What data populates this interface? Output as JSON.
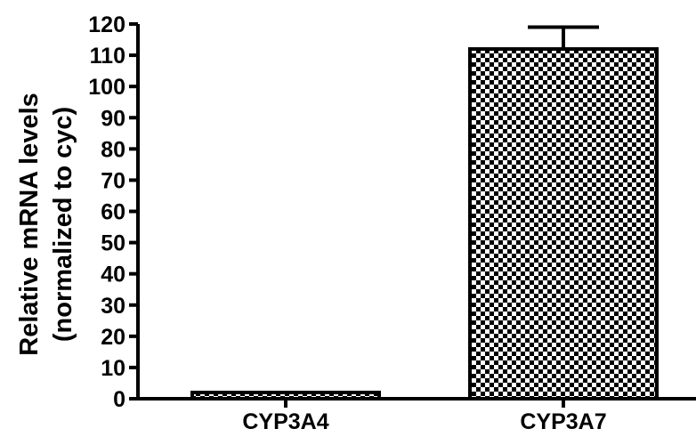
{
  "chart_data": {
    "type": "bar",
    "categories": [
      "CYP3A4",
      "CYP3A7"
    ],
    "values": [
      2,
      112
    ],
    "error_bars": [
      0,
      7
    ],
    "ylabel_lines": [
      "Relative mRNA levels",
      "(normalized to cyc)"
    ],
    "xlabel": "",
    "ylim": [
      0,
      120
    ],
    "yticks": [
      "0",
      "10",
      "20",
      "30",
      "40",
      "50",
      "60",
      "70",
      "80",
      "90",
      "100",
      "110",
      "120"
    ],
    "grid": false,
    "bar_fill": "checkerboard",
    "colors": {
      "bar_dark": "#000000",
      "bar_light": "#ffffff",
      "axis": "#000000"
    }
  }
}
